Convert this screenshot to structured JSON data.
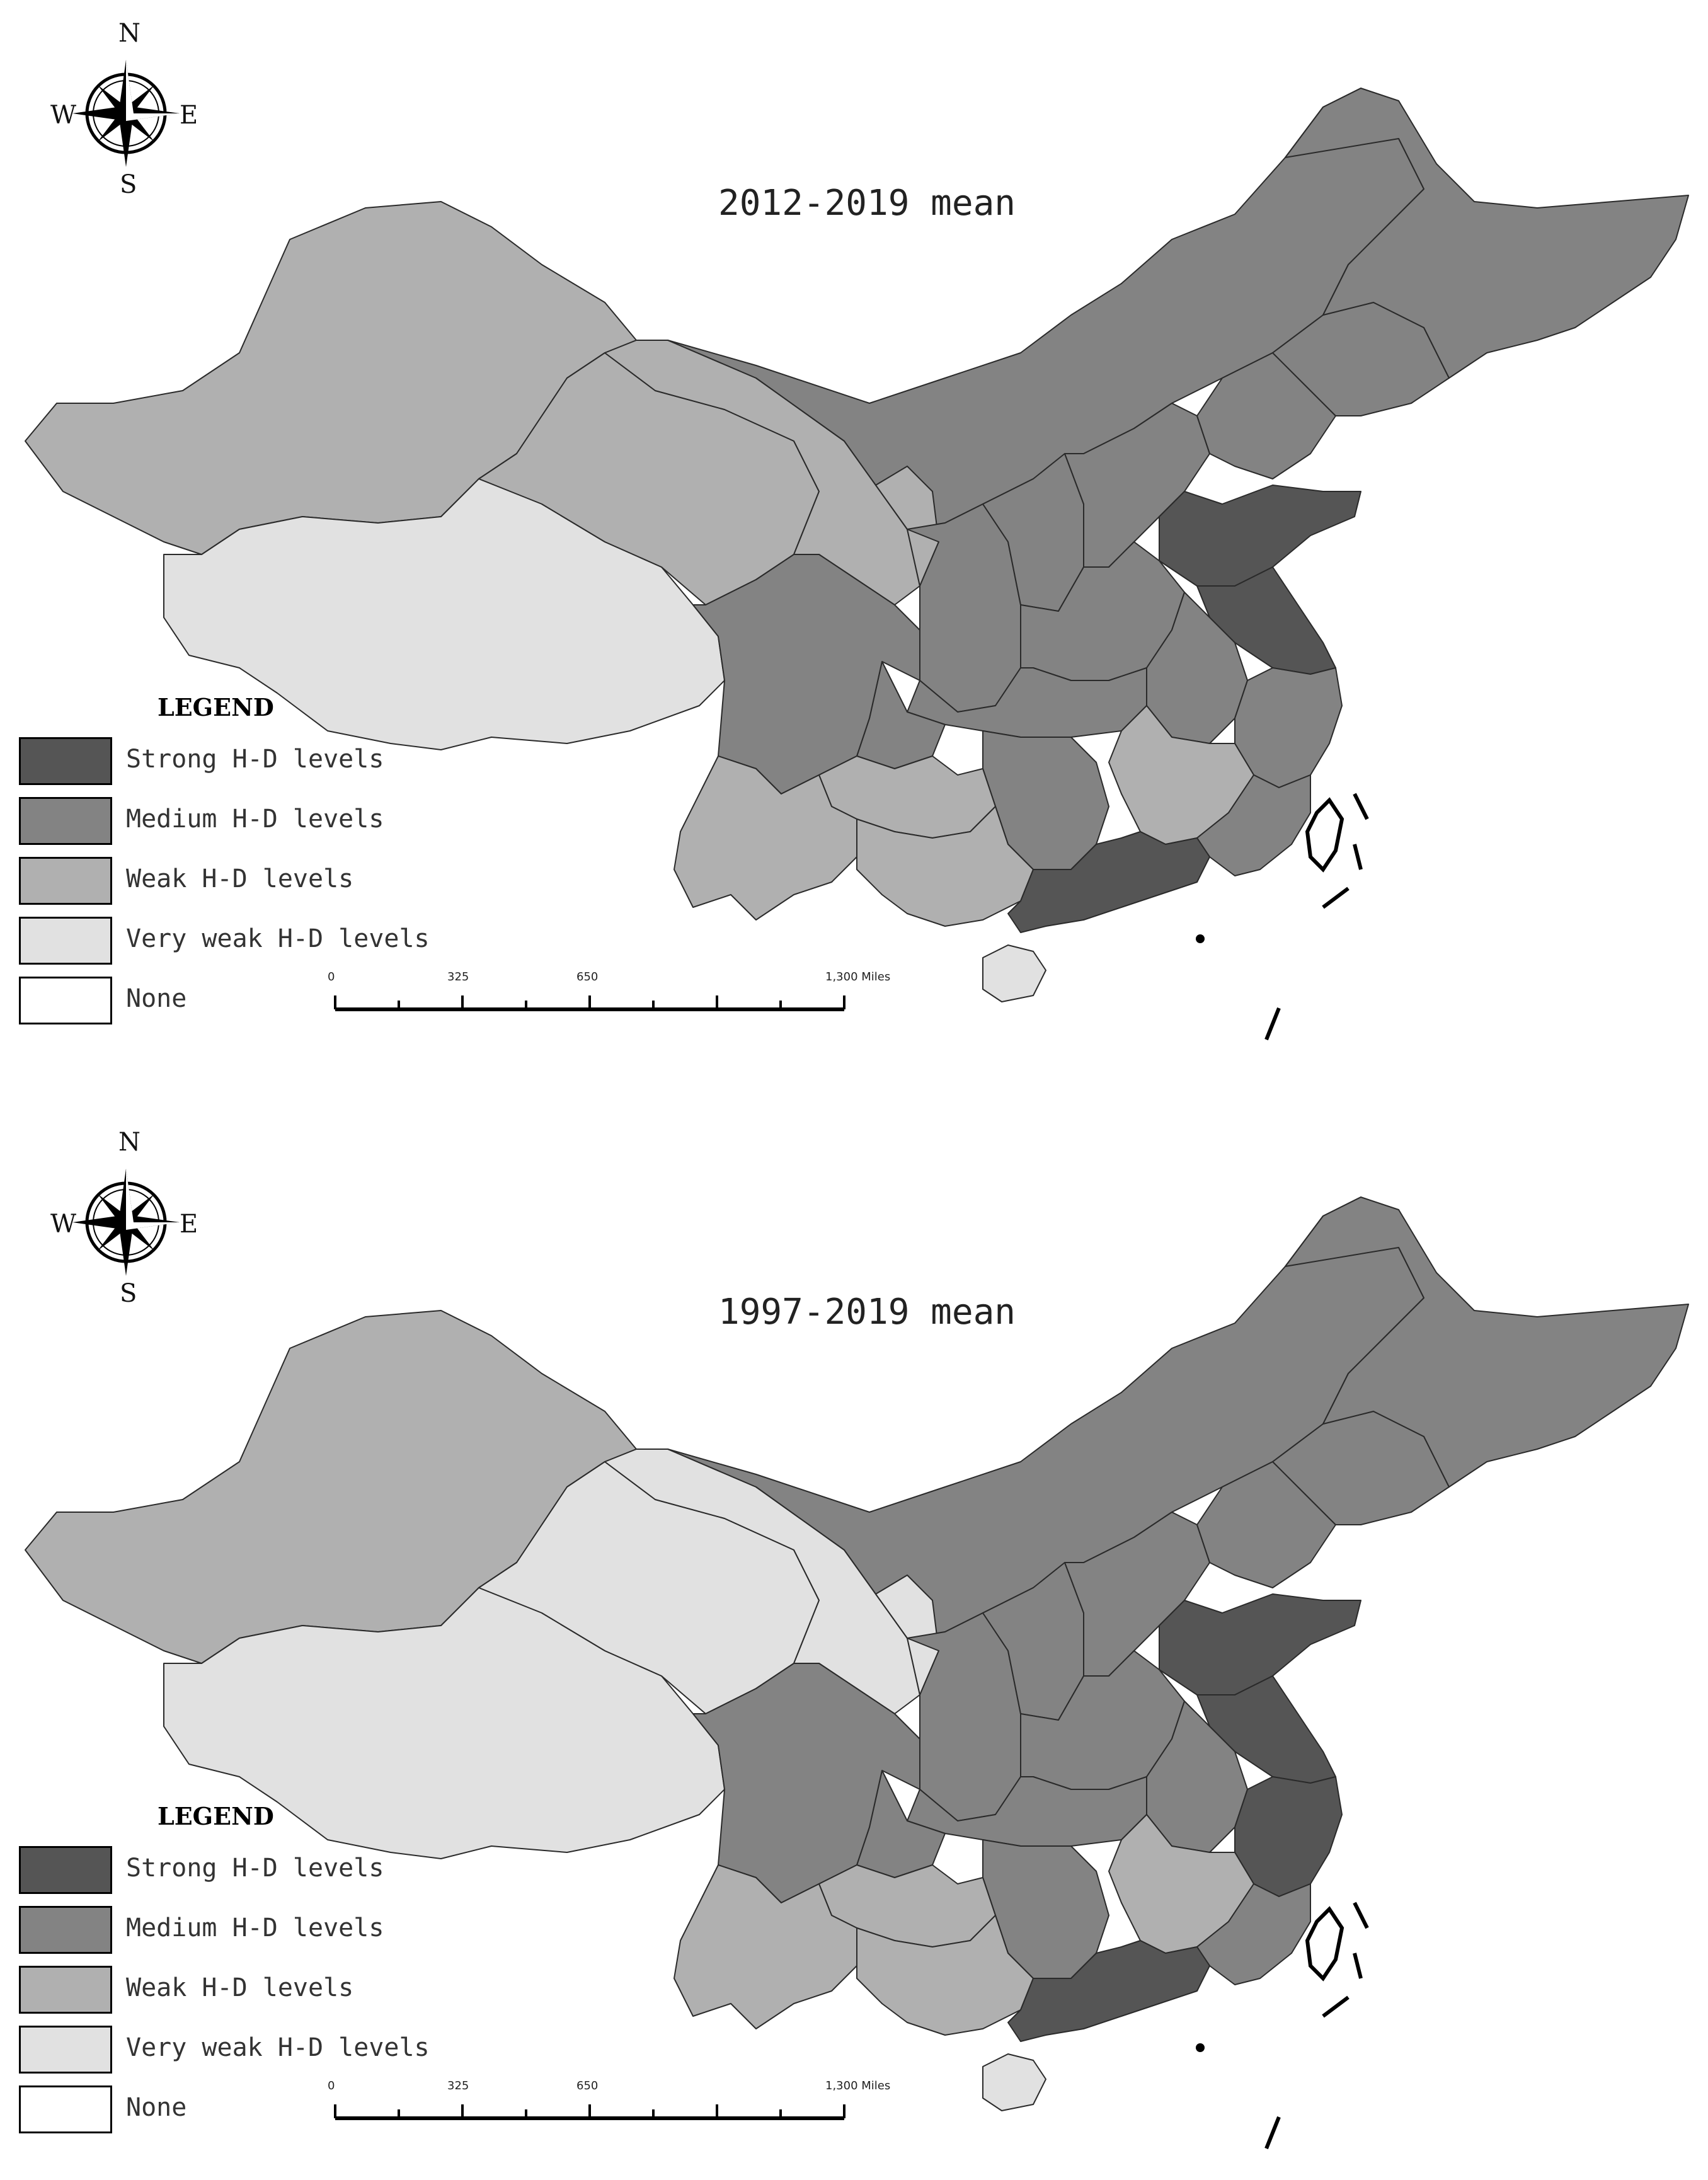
{
  "compass": {
    "n": "N",
    "s": "S",
    "e": "E",
    "w": "W"
  },
  "colors": {
    "strong": "#555555",
    "medium": "#838383",
    "weak": "#b0b0b0",
    "very_weak": "#e1e1e1",
    "none": "#ffffff",
    "border": "#2a2a2a"
  },
  "legend": {
    "title": "LEGEND",
    "items": [
      {
        "key": "strong",
        "label": "Strong H-D levels"
      },
      {
        "key": "medium",
        "label": "Medium H-D levels"
      },
      {
        "key": "weak",
        "label": "Weak H-D levels"
      },
      {
        "key": "very_weak",
        "label": "Very weak H-D levels"
      },
      {
        "key": "none",
        "label": "None"
      }
    ]
  },
  "scale_bar": {
    "labels": [
      "0",
      "325",
      "650",
      "1,300 Miles"
    ]
  },
  "maps": [
    {
      "title": "2012-2019 mean",
      "regions": {
        "xinjiang": "weak",
        "tibet": "very_weak",
        "qinghai": "weak",
        "gansu": "weak",
        "inner_mongolia": "medium",
        "ningxia": "weak",
        "shaanxi": "medium",
        "sichuan": "medium",
        "yunnan": "weak",
        "guizhou": "weak",
        "chongqing": "medium",
        "guangxi": "weak",
        "guangdong": "strong",
        "hunan": "medium",
        "jiangxi": "weak",
        "fujian": "medium",
        "zhejiang": "medium",
        "jiangsu": "strong",
        "shandong": "strong",
        "anhui": "medium",
        "henan": "medium",
        "hubei": "medium",
        "shanxi": "medium",
        "hebei": "medium",
        "liaoning": "medium",
        "jilin": "medium",
        "heilongjiang": "medium",
        "hainan": "very_weak"
      }
    },
    {
      "title": "1997-2019 mean",
      "regions": {
        "xinjiang": "weak",
        "tibet": "very_weak",
        "qinghai": "very_weak",
        "gansu": "very_weak",
        "inner_mongolia": "medium",
        "ningxia": "very_weak",
        "shaanxi": "medium",
        "sichuan": "medium",
        "yunnan": "weak",
        "guizhou": "weak",
        "chongqing": "medium",
        "guangxi": "weak",
        "guangdong": "strong",
        "hunan": "medium",
        "jiangxi": "weak",
        "fujian": "medium",
        "zhejiang": "strong",
        "jiangsu": "strong",
        "shandong": "strong",
        "anhui": "medium",
        "henan": "medium",
        "hubei": "medium",
        "shanxi": "medium",
        "hebei": "medium",
        "liaoning": "medium",
        "jilin": "medium",
        "heilongjiang": "medium",
        "hainan": "very_weak"
      }
    }
  ]
}
